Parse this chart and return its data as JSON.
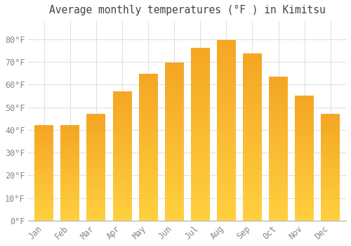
{
  "title": "Average monthly temperatures (°F ) in Kimitsu",
  "months": [
    "Jan",
    "Feb",
    "Mar",
    "Apr",
    "May",
    "Jun",
    "Jul",
    "Aug",
    "Sep",
    "Oct",
    "Nov",
    "Dec"
  ],
  "values": [
    42,
    42,
    47,
    57,
    64.5,
    69.5,
    76,
    79.5,
    73.5,
    63.5,
    55,
    47
  ],
  "bar_color_bottom": "#FFD040",
  "bar_color_top": "#F5A623",
  "ylim": [
    0,
    88
  ],
  "yticks": [
    0,
    10,
    20,
    30,
    40,
    50,
    60,
    70,
    80
  ],
  "ytick_labels": [
    "0°F",
    "10°F",
    "20°F",
    "30°F",
    "40°F",
    "50°F",
    "60°F",
    "70°F",
    "80°F"
  ],
  "background_color": "#FFFFFF",
  "grid_color": "#E0E0E0",
  "title_fontsize": 10.5,
  "tick_fontsize": 8.5
}
